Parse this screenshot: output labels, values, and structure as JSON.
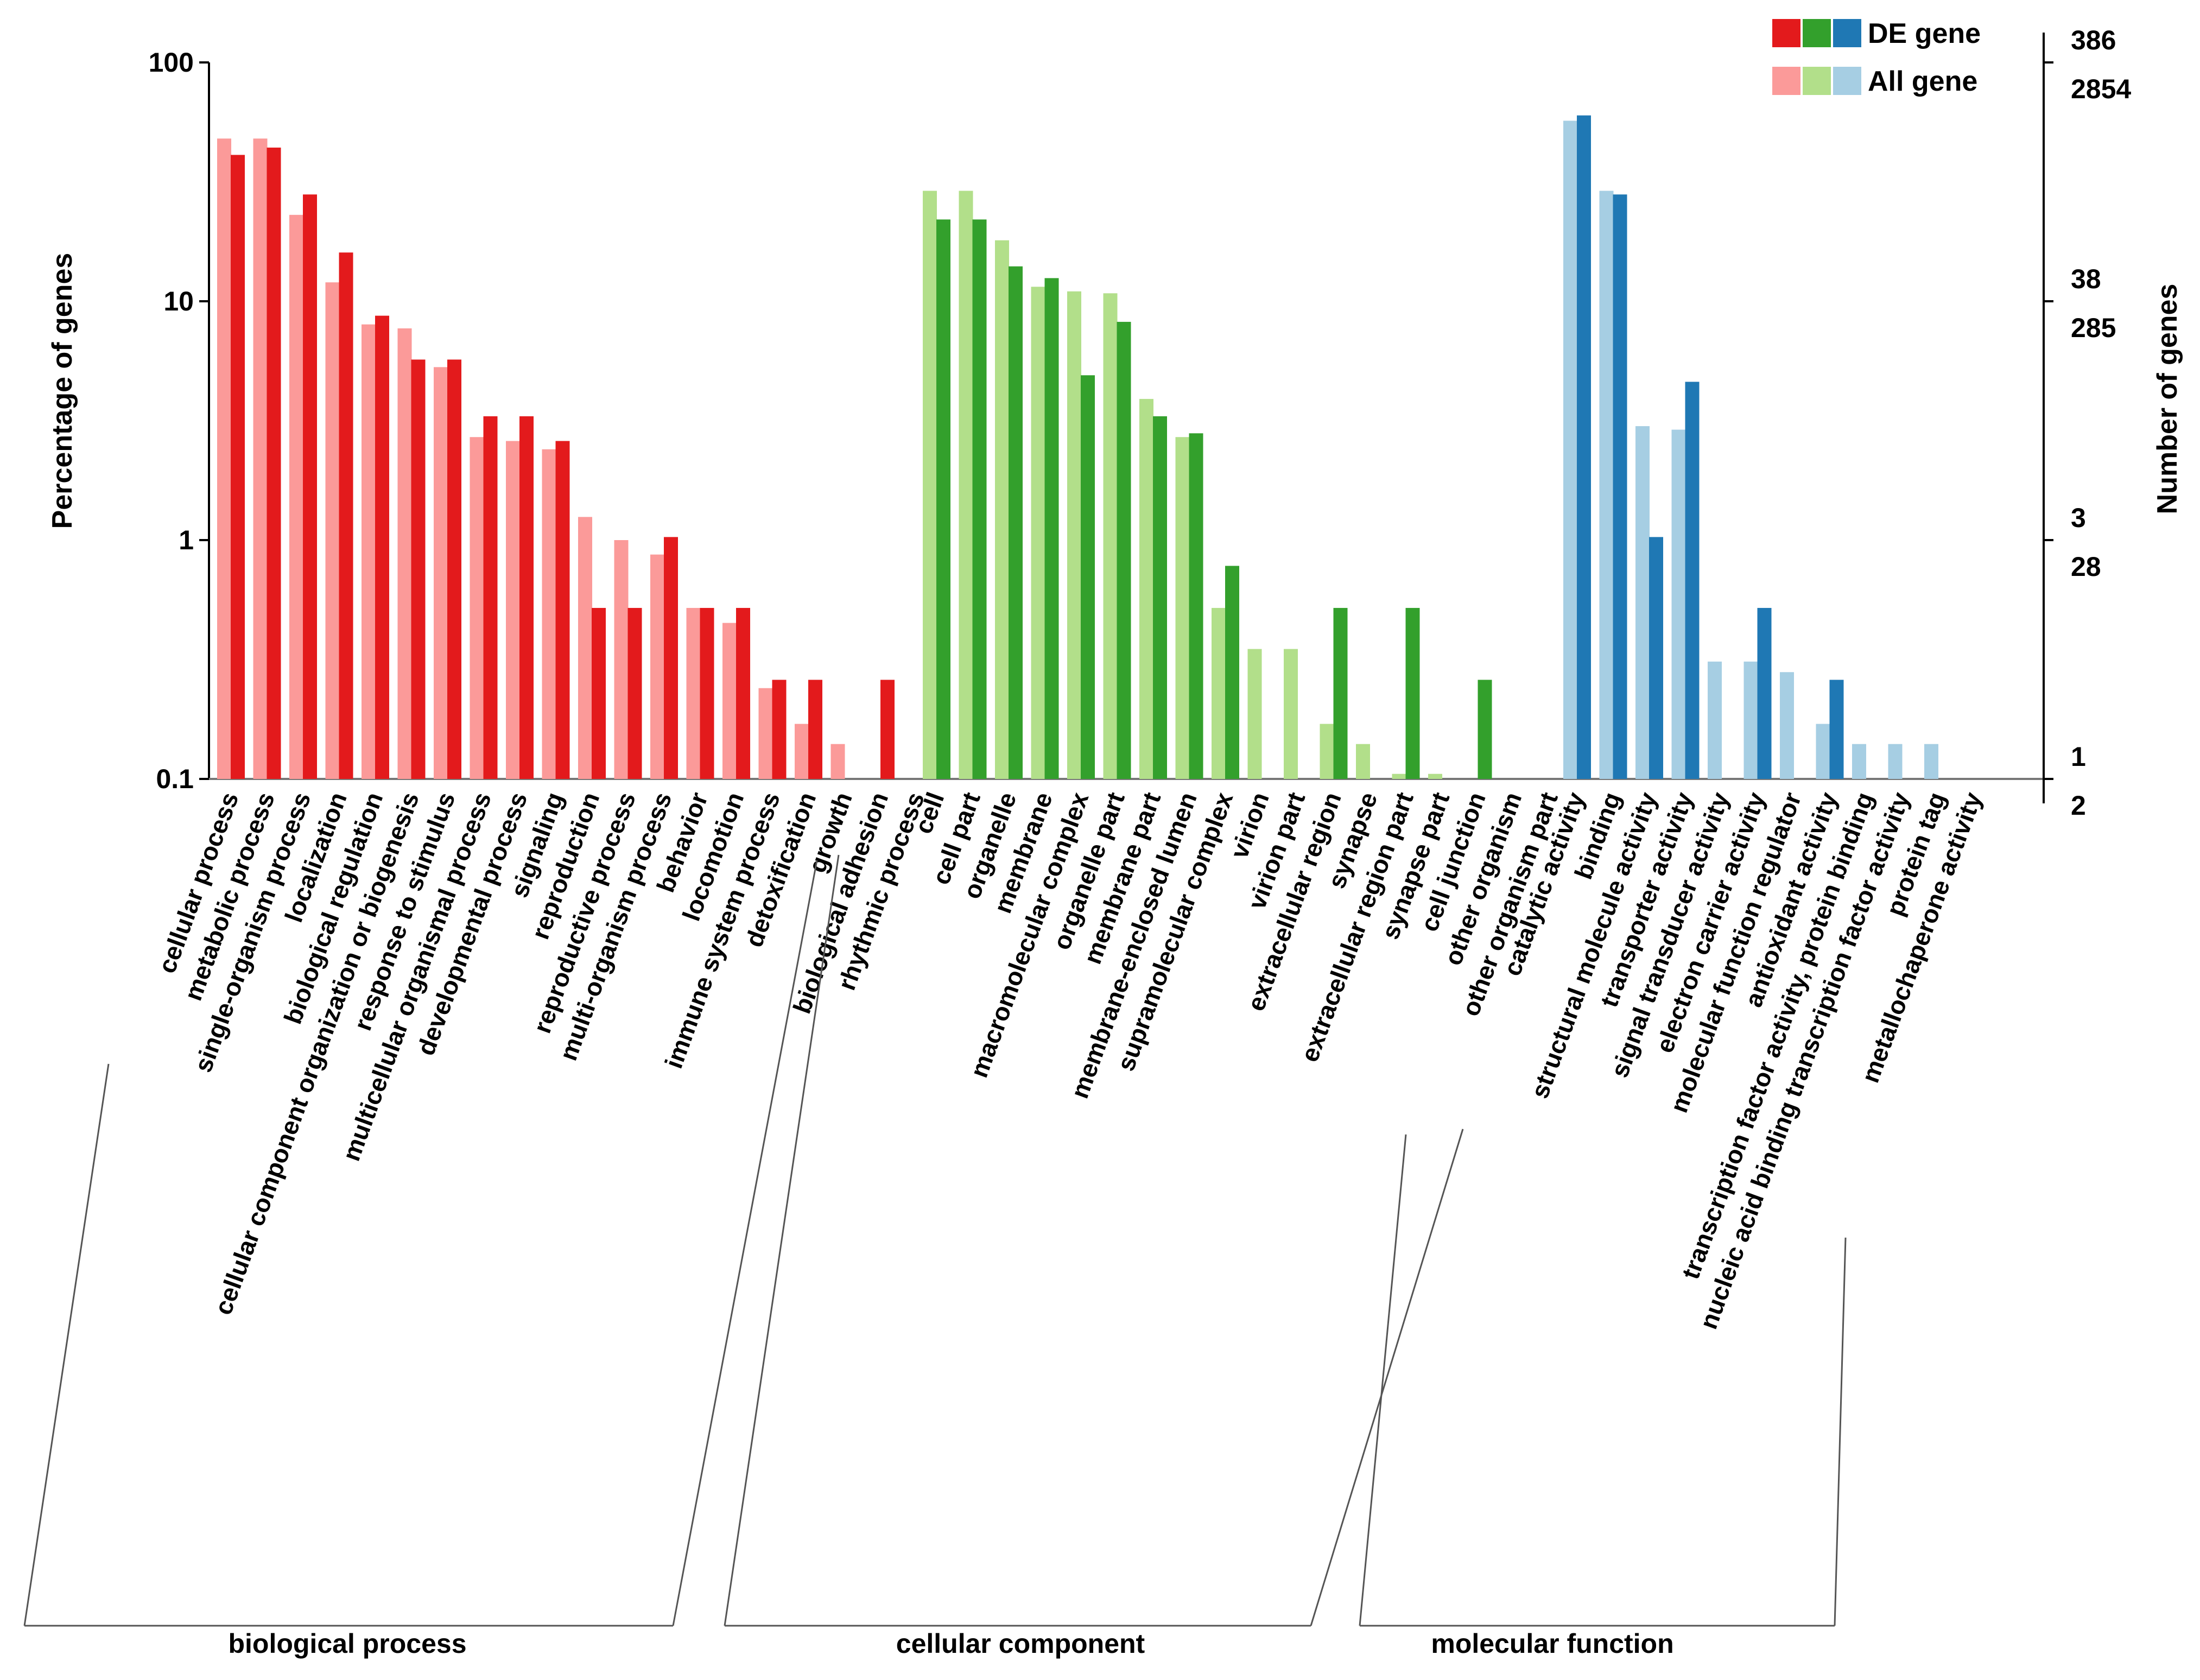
{
  "chart_data": {
    "type": "bar",
    "y_scale": "log",
    "ylabel": "Percentage of genes",
    "y2label": "Number of genes",
    "ylim": [
      0.1,
      100
    ],
    "yticks": [
      {
        "value": 0.1,
        "label": "0.1"
      },
      {
        "value": 1,
        "label": "1"
      },
      {
        "value": 10,
        "label": "10"
      },
      {
        "value": 100,
        "label": "100"
      }
    ],
    "right_axis_ticks": [
      {
        "value": 100,
        "label_de": "386",
        "label_all": "2854"
      },
      {
        "value": 10,
        "label_de": "38",
        "label_all": "285"
      },
      {
        "value": 1,
        "label_de": "3",
        "label_all": "28"
      },
      {
        "value": 0.1,
        "label_de": "1",
        "label_all": "2"
      }
    ],
    "legend": {
      "position": "top-right",
      "entries": [
        {
          "label": "DE gene",
          "colors": [
            "#e31a1c",
            "#33a02c",
            "#1f78b4"
          ]
        },
        {
          "label": "All gene",
          "colors": [
            "#fb9a99",
            "#b2df8a",
            "#a6cee3"
          ]
        }
      ]
    },
    "series": [
      {
        "name": "All gene"
      },
      {
        "name": "DE gene"
      }
    ],
    "groups": [
      {
        "name": "biological process",
        "color_de": "#e31a1c",
        "color_all": "#fb9a99",
        "categories": [
          {
            "label": "cellular process",
            "all": 48,
            "de": 41
          },
          {
            "label": "metabolic process",
            "all": 48,
            "de": 44
          },
          {
            "label": "single-organism process",
            "all": 23,
            "de": 28
          },
          {
            "label": "localization",
            "all": 12,
            "de": 16
          },
          {
            "label": "biological regulation",
            "all": 8,
            "de": 8.7
          },
          {
            "label": "cellular component organization or biogenesis",
            "all": 7.7,
            "de": 5.7
          },
          {
            "label": "response to stimulus",
            "all": 5.3,
            "de": 5.7
          },
          {
            "label": "multicellular organismal process",
            "all": 2.7,
            "de": 3.3
          },
          {
            "label": "developmental process",
            "all": 2.6,
            "de": 3.3
          },
          {
            "label": "signaling",
            "all": 2.4,
            "de": 2.6
          },
          {
            "label": "reproduction",
            "all": 1.25,
            "de": 0.52
          },
          {
            "label": "reproductive process",
            "all": 1.0,
            "de": 0.52
          },
          {
            "label": "multi-organism process",
            "all": 0.87,
            "de": 1.03
          },
          {
            "label": "behavior",
            "all": 0.52,
            "de": 0.52
          },
          {
            "label": "locomotion",
            "all": 0.45,
            "de": 0.52
          },
          {
            "label": "immune system process",
            "all": 0.24,
            "de": 0.26
          },
          {
            "label": "detoxification",
            "all": 0.17,
            "de": 0.26
          },
          {
            "label": "growth",
            "all": 0.14,
            "de": null
          },
          {
            "label": "biological adhesion",
            "all": null,
            "de": 0.26
          },
          {
            "label": "rhythmic process",
            "all": null,
            "de": null
          }
        ]
      },
      {
        "name": "cellular component",
        "color_de": "#33a02c",
        "color_all": "#b2df8a",
        "categories": [
          {
            "label": "cell",
            "all": 29,
            "de": 22
          },
          {
            "label": "cell part",
            "all": 29,
            "de": 22
          },
          {
            "label": "organelle",
            "all": 18,
            "de": 14
          },
          {
            "label": "membrane",
            "all": 11.5,
            "de": 12.5
          },
          {
            "label": "macromolecular complex",
            "all": 11,
            "de": 4.9
          },
          {
            "label": "organelle part",
            "all": 10.8,
            "de": 8.2
          },
          {
            "label": "membrane part",
            "all": 3.9,
            "de": 3.3
          },
          {
            "label": "membrane-enclosed lumen",
            "all": 2.7,
            "de": 2.8
          },
          {
            "label": "supramolecular complex",
            "all": 0.52,
            "de": 0.78
          },
          {
            "label": "virion",
            "all": 0.35,
            "de": null
          },
          {
            "label": "virion part",
            "all": 0.35,
            "de": null
          },
          {
            "label": "extracellular region",
            "all": 0.17,
            "de": 0.52
          },
          {
            "label": "synapse",
            "all": 0.14,
            "de": null
          },
          {
            "label": "extracellular region part",
            "all": 0.105,
            "de": 0.52
          },
          {
            "label": "synapse part",
            "all": 0.105,
            "de": null
          },
          {
            "label": "cell junction",
            "all": null,
            "de": 0.26
          },
          {
            "label": "other organism",
            "all": null,
            "de": null
          },
          {
            "label": "other organism part",
            "all": null,
            "de": null
          }
        ]
      },
      {
        "name": "molecular function",
        "color_de": "#1f78b4",
        "color_all": "#a6cee3",
        "categories": [
          {
            "label": "catalytic activity",
            "all": 57,
            "de": 60
          },
          {
            "label": "binding",
            "all": 29,
            "de": 28
          },
          {
            "label": "structural molecule activity",
            "all": 3.0,
            "de": 1.03
          },
          {
            "label": "transporter activity",
            "all": 2.9,
            "de": 4.6
          },
          {
            "label": "signal transducer activity",
            "all": 0.31,
            "de": null
          },
          {
            "label": "electron carrier activity",
            "all": 0.31,
            "de": 0.52
          },
          {
            "label": "molecular function regulator",
            "all": 0.28,
            "de": null
          },
          {
            "label": "antioxidant activity",
            "all": 0.17,
            "de": 0.26
          },
          {
            "label": "transcription factor activity, protein binding",
            "all": 0.14,
            "de": null
          },
          {
            "label": "nucleic acid binding transcription factor activity",
            "all": 0.14,
            "de": null
          },
          {
            "label": "protein tag",
            "all": 0.14,
            "de": null
          },
          {
            "label": "metallochaperone activity",
            "all": null,
            "de": null
          }
        ]
      }
    ]
  }
}
